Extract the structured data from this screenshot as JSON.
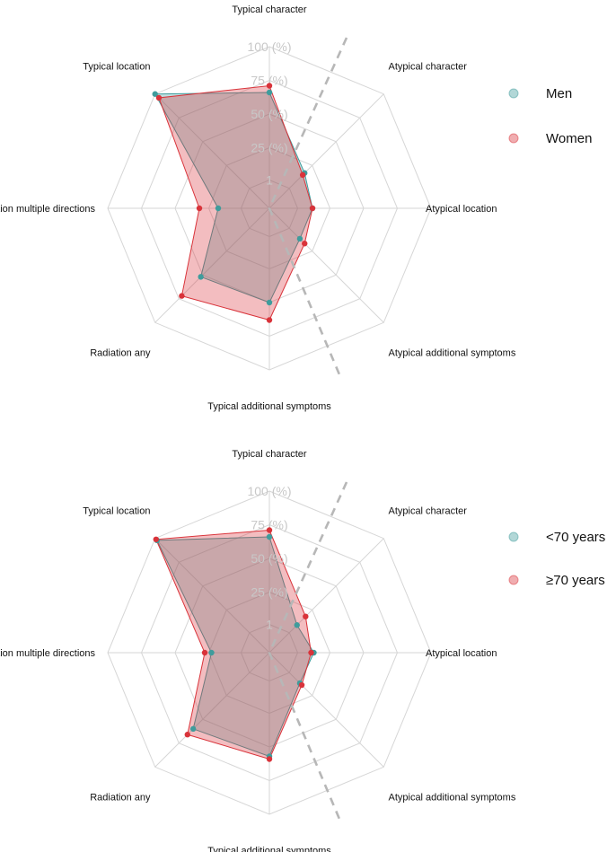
{
  "chart_data": [
    {
      "type": "radar",
      "axes": [
        "Typical character",
        "Atypical character",
        "Atypical location",
        "Atypical additional symptoms",
        "Typical additional symptoms",
        "Radiation any",
        "Radiation multiple directions",
        "Typical location"
      ],
      "ring_labels": [
        "1",
        "25 (%)",
        "50 (%)",
        "75 (%)",
        "100 (%)"
      ],
      "ring_values": [
        1,
        25,
        50,
        75,
        100
      ],
      "range": [
        -20,
        100
      ],
      "divider": "dashed diagonal line",
      "series": [
        {
          "name": "Men",
          "color": "#3f9c9c",
          "values": [
            66,
            17,
            12,
            12,
            50,
            52,
            18,
            100
          ]
        },
        {
          "name": "Women",
          "color": "#d9333a",
          "values": [
            71,
            15,
            12,
            17,
            63,
            72,
            32,
            96
          ]
        }
      ],
      "legend": {
        "position": "right"
      }
    },
    {
      "type": "radar",
      "axes": [
        "Typical character",
        "Atypical character",
        "Atypical location",
        "Atypical additional symptoms",
        "Typical additional symptoms",
        "Radiation any",
        "Radiation multiple directions",
        "Typical location"
      ],
      "ring_labels": [
        "1",
        "25 (%)",
        "50 (%)",
        "75 (%)",
        "100 (%)"
      ],
      "ring_values": [
        1,
        25,
        50,
        75,
        100
      ],
      "range": [
        -20,
        100
      ],
      "divider": "dashed diagonal line",
      "series": [
        {
          "name": "<70 years",
          "color": "#3f9c9c",
          "values": [
            66,
            9,
            13,
            12,
            57,
            60,
            23,
            98
          ]
        },
        {
          "name": "≥70 years",
          "color": "#d9333a",
          "values": [
            71,
            18,
            11,
            14,
            59,
            66,
            28,
            99
          ]
        }
      ],
      "legend": {
        "position": "right"
      }
    }
  ]
}
